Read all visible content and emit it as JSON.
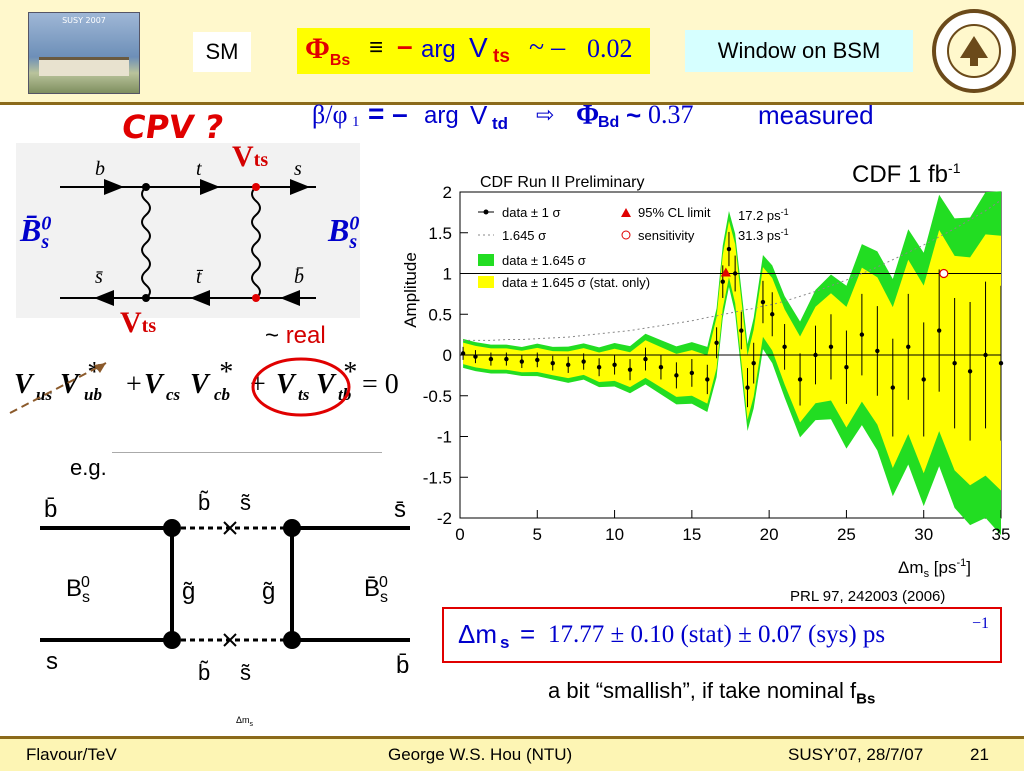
{
  "header": {
    "conference_logo_text": "SUSY 2007",
    "sm_label": "SM",
    "phi_bs_formula": {
      "Phi": "Φ",
      "sub": "Bs",
      "equiv": "≡",
      "minus": "–",
      "arg": "arg",
      "V": "V",
      "Vsub": "ts",
      "approx": "~ –",
      "value": "0.02"
    },
    "bsm_label": "Window on BSM",
    "ntu_logo": "ntu-seal"
  },
  "beta_line": {
    "beta_phi": "β/φ",
    "sub1": "1",
    "eq": "= –",
    "arg": "arg",
    "V": "V",
    "Vsub": "td",
    "arrow": "⇨",
    "Phi": "Φ",
    "PhiSub": "Bd",
    "approx": "~",
    "value": "0.37",
    "measured": "measured"
  },
  "cpv_label": "CPV ?",
  "box_diagram": {
    "top_quarks": [
      "b",
      "t",
      "s"
    ],
    "bottom_quarks": [
      "s̄",
      "t̄",
      "b̄"
    ],
    "top_vertex": "V",
    "top_vertex_sub": "ts",
    "bottom_vertex": "V",
    "bottom_vertex_sub": "ts",
    "left_meson": "B̄",
    "left_meson_sup": "0",
    "left_meson_sub": "s",
    "right_meson": "B",
    "right_meson_sup": "0",
    "right_meson_sub": "s"
  },
  "real_text": {
    "tilde": "~",
    "word": "real"
  },
  "unitarity": {
    "terms": [
      {
        "a": "V",
        "asub": "us",
        "b": "V",
        "bsub": "ub",
        "sup": "*"
      },
      {
        "a": "V",
        "asub": "cs",
        "b": "V",
        "bsub": "cb",
        "sup": "*"
      },
      {
        "a": "V",
        "asub": "ts",
        "b": "V",
        "bsub": "tb",
        "sup": "*"
      }
    ],
    "plus": "+",
    "equals": "= 0"
  },
  "eg_label": "e.g.",
  "susy_diagram": {
    "top_left": "b̄",
    "top_right": "s̄",
    "bottom_left": "s",
    "bottom_right": "b̄",
    "top_squarks": [
      "b̃",
      "s̃"
    ],
    "bottom_squarks": [
      "b̃",
      "s̃"
    ],
    "gluinos": [
      "g̃",
      "g̃"
    ],
    "left_meson": "B",
    "left_meson_sub": "s",
    "left_meson_sup": "0",
    "right_meson": "B̄",
    "right_meson_sub": "s",
    "right_meson_sup": "0"
  },
  "tiny_label": "Δm",
  "tiny_label_sub": "s",
  "plot_header": {
    "cdf_lumi": "CDF 1 fb",
    "cdf_lumi_sup": "-1"
  },
  "chart_data": {
    "type": "line",
    "title": "CDF Run II Preliminary",
    "xlabel": "Δm",
    "xlabel_sub": "s",
    "xlabel_unit": "[ps",
    "xlabel_unit_sup": "-1",
    "xlabel_unit_end": "]",
    "ylabel": "Amplitude",
    "xlim": [
      0,
      35
    ],
    "ylim": [
      -2,
      2
    ],
    "x_ticks": [
      "0",
      "5",
      "10",
      "15",
      "20",
      "25",
      "30",
      "35"
    ],
    "y_ticks": [
      "2",
      "1.5",
      "1",
      "0.5",
      "0",
      "-0.5",
      "-1",
      "-1.5",
      "-2"
    ],
    "legend": [
      "data ± 1 σ",
      "1.645 σ",
      "data ± 1.645 σ",
      "data ± 1.645 σ (stat. only)",
      "95% CL limit",
      "sensitivity"
    ],
    "annotations": {
      "limit": "17.2 ps",
      "limit_sup": "-1",
      "sensitivity": "31.3 ps",
      "sensitivity_sup": "-1"
    },
    "limit_x": 17.2,
    "sensitivity_x": 31.3,
    "x": [
      0.2,
      1,
      2,
      3,
      4,
      5,
      6,
      7,
      8,
      9,
      10,
      11,
      12,
      13,
      14,
      15,
      16,
      16.6,
      17,
      17.4,
      17.8,
      18.2,
      18.6,
      19,
      19.6,
      20.2,
      21,
      22,
      23,
      24,
      25,
      26,
      27,
      28,
      29,
      30,
      31,
      32,
      33,
      34,
      35
    ],
    "amplitude": [
      0.02,
      -0.02,
      -0.05,
      -0.05,
      -0.08,
      -0.06,
      -0.1,
      -0.12,
      -0.08,
      -0.15,
      -0.12,
      -0.18,
      -0.05,
      -0.15,
      -0.25,
      -0.22,
      -0.3,
      0.15,
      0.9,
      1.3,
      1.0,
      0.3,
      -0.4,
      -0.1,
      0.65,
      0.5,
      0.1,
      -0.3,
      0.0,
      0.1,
      -0.15,
      0.25,
      0.05,
      -0.4,
      0.1,
      -0.3,
      0.3,
      -0.1,
      -0.2,
      0.0,
      -0.1
    ],
    "err1": [
      0.08,
      0.08,
      0.08,
      0.08,
      0.08,
      0.09,
      0.09,
      0.1,
      0.1,
      0.11,
      0.12,
      0.13,
      0.14,
      0.15,
      0.16,
      0.17,
      0.18,
      0.19,
      0.2,
      0.21,
      0.22,
      0.23,
      0.24,
      0.25,
      0.26,
      0.27,
      0.28,
      0.32,
      0.36,
      0.4,
      0.45,
      0.5,
      0.55,
      0.6,
      0.65,
      0.7,
      0.75,
      0.8,
      0.85,
      0.9,
      0.95
    ],
    "sensitivity_line": [
      0.18,
      0.18,
      0.18,
      0.19,
      0.19,
      0.2,
      0.21,
      0.22,
      0.24,
      0.26,
      0.28,
      0.3,
      0.33,
      0.36,
      0.39,
      0.42,
      0.46,
      0.48,
      0.5,
      0.51,
      0.53,
      0.54,
      0.56,
      0.57,
      0.6,
      0.62,
      0.66,
      0.72,
      0.78,
      0.85,
      0.92,
      1.0,
      1.08,
      1.17,
      1.26,
      1.35,
      1.45,
      1.55,
      1.66,
      1.77,
      1.9
    ]
  },
  "prl_ref": "PRL 97, 242003 (2006)",
  "result": {
    "delta": "Δm",
    "sub": "s",
    "eq": "=",
    "value": "17.77 ± 0.10 (stat) ± 0.07 (sys) ps",
    "unit_sup": "−1"
  },
  "smallish": {
    "text": "a bit “smallish”, if take nominal f",
    "sub": "Bs"
  },
  "footer": {
    "left": "Flavour/TeV",
    "center": "George W.S. Hou (NTU)",
    "right": "SUSY’07, 28/7/07",
    "page": "21"
  },
  "colors": {
    "header_bg": "#fff8cc",
    "green_band": "#22dd22",
    "yellow_band": "#ffff00",
    "accent_red": "#e00000",
    "formula_blue": "#0000cc"
  }
}
